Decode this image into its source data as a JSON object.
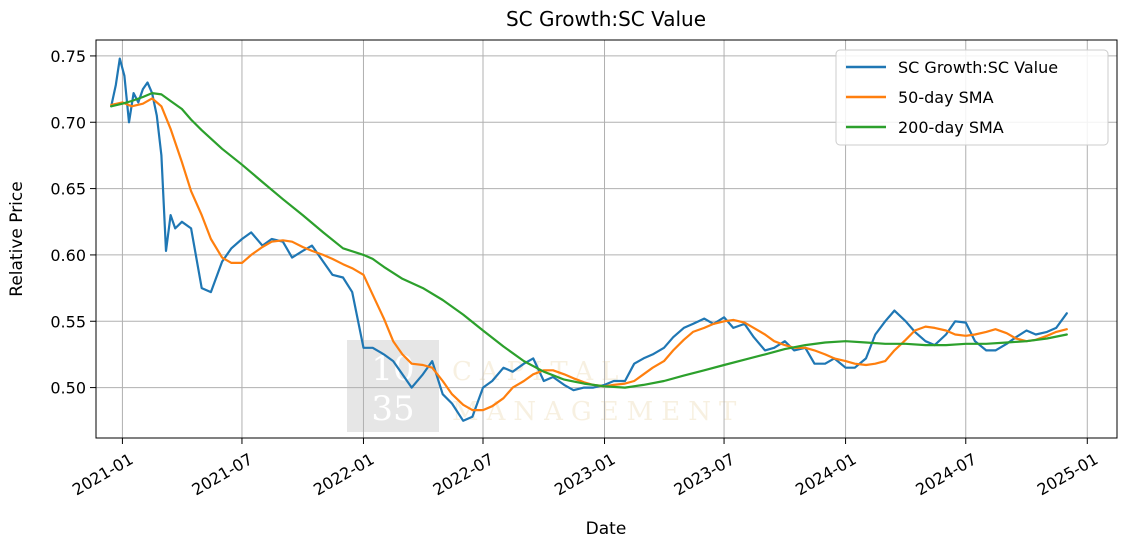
{
  "chart_data": {
    "type": "line",
    "title": "SC Growth:SC Value",
    "xlabel": "Date",
    "ylabel": "Relative Price",
    "x_ticks": [
      "2021-01",
      "2021-07",
      "2022-01",
      "2022-07",
      "2023-01",
      "2023-07",
      "2024-01",
      "2024-07",
      "2025-01"
    ],
    "y_ticks": [
      "0.50",
      "0.55",
      "0.60",
      "0.65",
      "0.70",
      "0.75"
    ],
    "xlim": [
      "2020-11-22",
      "2025-02-15"
    ],
    "ylim": [
      0.462,
      0.762
    ],
    "grid": true,
    "legend_position": "top-right",
    "series": [
      {
        "name": "SC Growth:SC Value",
        "color": "#1f77b4",
        "x": [
          "2020-12-15",
          "2020-12-22",
          "2020-12-28",
          "2021-01-04",
          "2021-01-11",
          "2021-01-18",
          "2021-01-25",
          "2021-02-01",
          "2021-02-08",
          "2021-02-15",
          "2021-02-22",
          "2021-03-01",
          "2021-03-08",
          "2021-03-15",
          "2021-03-22",
          "2021-04-01",
          "2021-04-15",
          "2021-05-01",
          "2021-05-15",
          "2021-06-01",
          "2021-06-15",
          "2021-07-01",
          "2021-07-15",
          "2021-08-01",
          "2021-08-15",
          "2021-09-01",
          "2021-09-15",
          "2021-10-01",
          "2021-10-15",
          "2021-11-01",
          "2021-11-15",
          "2021-12-01",
          "2021-12-15",
          "2022-01-01",
          "2022-01-15",
          "2022-02-01",
          "2022-02-15",
          "2022-03-01",
          "2022-03-15",
          "2022-04-01",
          "2022-04-15",
          "2022-05-01",
          "2022-05-15",
          "2022-06-01",
          "2022-06-15",
          "2022-07-01",
          "2022-07-15",
          "2022-08-01",
          "2022-08-15",
          "2022-09-01",
          "2022-09-15",
          "2022-10-01",
          "2022-10-15",
          "2022-11-01",
          "2022-11-15",
          "2022-12-01",
          "2022-12-15",
          "2023-01-01",
          "2023-01-15",
          "2023-02-01",
          "2023-02-15",
          "2023-03-01",
          "2023-03-15",
          "2023-04-01",
          "2023-04-15",
          "2023-05-01",
          "2023-05-15",
          "2023-06-01",
          "2023-06-15",
          "2023-07-01",
          "2023-07-15",
          "2023-08-01",
          "2023-08-15",
          "2023-09-01",
          "2023-09-15",
          "2023-10-01",
          "2023-10-15",
          "2023-11-01",
          "2023-11-15",
          "2023-12-01",
          "2023-12-15",
          "2024-01-01",
          "2024-01-15",
          "2024-02-01",
          "2024-02-15",
          "2024-03-01",
          "2024-03-15",
          "2024-04-01",
          "2024-04-15",
          "2024-05-01",
          "2024-05-15",
          "2024-06-01",
          "2024-06-15",
          "2024-07-01",
          "2024-07-15",
          "2024-08-01",
          "2024-08-15",
          "2024-09-01",
          "2024-09-15",
          "2024-10-01",
          "2024-10-15",
          "2024-11-01",
          "2024-11-15",
          "2024-12-01"
        ],
        "y": [
          0.712,
          0.728,
          0.748,
          0.735,
          0.7,
          0.722,
          0.715,
          0.725,
          0.73,
          0.722,
          0.705,
          0.675,
          0.603,
          0.63,
          0.62,
          0.625,
          0.62,
          0.575,
          0.572,
          0.595,
          0.605,
          0.612,
          0.617,
          0.607,
          0.612,
          0.61,
          0.598,
          0.603,
          0.607,
          0.595,
          0.585,
          0.583,
          0.572,
          0.53,
          0.53,
          0.525,
          0.52,
          0.51,
          0.5,
          0.51,
          0.52,
          0.495,
          0.488,
          0.475,
          0.478,
          0.5,
          0.505,
          0.515,
          0.512,
          0.518,
          0.522,
          0.505,
          0.508,
          0.502,
          0.498,
          0.5,
          0.5,
          0.502,
          0.505,
          0.505,
          0.518,
          0.522,
          0.525,
          0.53,
          0.538,
          0.545,
          0.548,
          0.552,
          0.548,
          0.553,
          0.545,
          0.548,
          0.538,
          0.528,
          0.53,
          0.535,
          0.528,
          0.53,
          0.518,
          0.518,
          0.522,
          0.515,
          0.515,
          0.522,
          0.54,
          0.55,
          0.558,
          0.55,
          0.542,
          0.535,
          0.532,
          0.54,
          0.55,
          0.549,
          0.535,
          0.528,
          0.528,
          0.533,
          0.538,
          0.543,
          0.54,
          0.542,
          0.545,
          0.556
        ]
      },
      {
        "name": "50-day SMA",
        "color": "#ff7f0e",
        "x": [
          "2020-12-15",
          "2021-01-01",
          "2021-01-15",
          "2021-02-01",
          "2021-02-15",
          "2021-03-01",
          "2021-03-15",
          "2021-04-01",
          "2021-04-15",
          "2021-05-01",
          "2021-05-15",
          "2021-06-01",
          "2021-06-15",
          "2021-07-01",
          "2021-07-15",
          "2021-08-01",
          "2021-08-15",
          "2021-09-01",
          "2021-09-15",
          "2021-10-01",
          "2021-10-15",
          "2021-11-01",
          "2021-11-15",
          "2021-12-01",
          "2021-12-15",
          "2022-01-01",
          "2022-01-15",
          "2022-02-01",
          "2022-02-15",
          "2022-03-01",
          "2022-03-15",
          "2022-04-01",
          "2022-04-15",
          "2022-05-01",
          "2022-05-15",
          "2022-06-01",
          "2022-06-15",
          "2022-07-01",
          "2022-07-15",
          "2022-08-01",
          "2022-08-15",
          "2022-09-01",
          "2022-09-15",
          "2022-10-01",
          "2022-10-15",
          "2022-11-01",
          "2022-11-15",
          "2022-12-01",
          "2022-12-15",
          "2023-01-01",
          "2023-01-15",
          "2023-02-01",
          "2023-02-15",
          "2023-03-01",
          "2023-03-15",
          "2023-04-01",
          "2023-04-15",
          "2023-05-01",
          "2023-05-15",
          "2023-06-01",
          "2023-06-15",
          "2023-07-01",
          "2023-07-15",
          "2023-08-01",
          "2023-08-15",
          "2023-09-01",
          "2023-09-15",
          "2023-10-01",
          "2023-10-15",
          "2023-11-01",
          "2023-11-15",
          "2023-12-01",
          "2023-12-15",
          "2024-01-01",
          "2024-01-15",
          "2024-02-01",
          "2024-02-15",
          "2024-03-01",
          "2024-03-15",
          "2024-04-01",
          "2024-04-15",
          "2024-05-01",
          "2024-05-15",
          "2024-06-01",
          "2024-06-15",
          "2024-07-01",
          "2024-07-15",
          "2024-08-01",
          "2024-08-15",
          "2024-09-01",
          "2024-09-15",
          "2024-10-01",
          "2024-10-15",
          "2024-11-01",
          "2024-11-15",
          "2024-12-01"
        ],
        "y": [
          0.713,
          0.715,
          0.712,
          0.714,
          0.718,
          0.712,
          0.695,
          0.67,
          0.648,
          0.63,
          0.612,
          0.598,
          0.594,
          0.594,
          0.6,
          0.606,
          0.61,
          0.611,
          0.61,
          0.606,
          0.603,
          0.6,
          0.597,
          0.593,
          0.59,
          0.585,
          0.57,
          0.552,
          0.535,
          0.525,
          0.518,
          0.517,
          0.515,
          0.505,
          0.495,
          0.487,
          0.483,
          0.483,
          0.486,
          0.492,
          0.5,
          0.505,
          0.51,
          0.513,
          0.513,
          0.51,
          0.507,
          0.504,
          0.502,
          0.501,
          0.502,
          0.503,
          0.505,
          0.51,
          0.515,
          0.52,
          0.528,
          0.536,
          0.542,
          0.545,
          0.548,
          0.55,
          0.551,
          0.549,
          0.545,
          0.54,
          0.535,
          0.532,
          0.53,
          0.53,
          0.528,
          0.525,
          0.522,
          0.52,
          0.518,
          0.517,
          0.518,
          0.52,
          0.528,
          0.536,
          0.543,
          0.546,
          0.545,
          0.543,
          0.54,
          0.539,
          0.54,
          0.542,
          0.544,
          0.541,
          0.537,
          0.535,
          0.536,
          0.539,
          0.542,
          0.544
        ]
      },
      {
        "name": "200-day SMA",
        "color": "#2ca02c",
        "x": [
          "2020-12-15",
          "2021-01-01",
          "2021-01-15",
          "2021-02-01",
          "2021-02-15",
          "2021-03-01",
          "2021-03-15",
          "2021-04-01",
          "2021-04-15",
          "2021-05-01",
          "2021-06-01",
          "2021-07-01",
          "2021-08-01",
          "2021-09-01",
          "2021-10-01",
          "2021-11-01",
          "2021-12-01",
          "2022-01-01",
          "2022-01-15",
          "2022-02-01",
          "2022-03-01",
          "2022-04-01",
          "2022-05-01",
          "2022-06-01",
          "2022-07-01",
          "2022-08-01",
          "2022-09-01",
          "2022-10-01",
          "2022-11-01",
          "2022-12-01",
          "2023-01-01",
          "2023-02-01",
          "2023-03-01",
          "2023-04-01",
          "2023-05-01",
          "2023-06-01",
          "2023-07-01",
          "2023-08-01",
          "2023-09-01",
          "2023-10-01",
          "2023-11-01",
          "2023-12-01",
          "2024-01-01",
          "2024-02-01",
          "2024-03-01",
          "2024-04-01",
          "2024-05-01",
          "2024-06-01",
          "2024-07-01",
          "2024-08-01",
          "2024-09-01",
          "2024-10-01",
          "2024-11-01",
          "2024-12-01"
        ],
        "y": [
          0.712,
          0.714,
          0.716,
          0.719,
          0.722,
          0.721,
          0.716,
          0.71,
          0.702,
          0.694,
          0.68,
          0.668,
          0.655,
          0.642,
          0.63,
          0.617,
          0.605,
          0.6,
          0.597,
          0.591,
          0.582,
          0.575,
          0.566,
          0.555,
          0.543,
          0.531,
          0.52,
          0.512,
          0.506,
          0.503,
          0.501,
          0.5,
          0.502,
          0.505,
          0.509,
          0.513,
          0.517,
          0.521,
          0.525,
          0.529,
          0.532,
          0.534,
          0.535,
          0.534,
          0.533,
          0.533,
          0.532,
          0.532,
          0.533,
          0.533,
          0.534,
          0.535,
          0.537,
          0.54
        ]
      }
    ]
  },
  "watermark": {
    "box_top": "10",
    "box_bottom": "35",
    "line1": "CAPITAL",
    "line2": "MANAGEMENT"
  }
}
